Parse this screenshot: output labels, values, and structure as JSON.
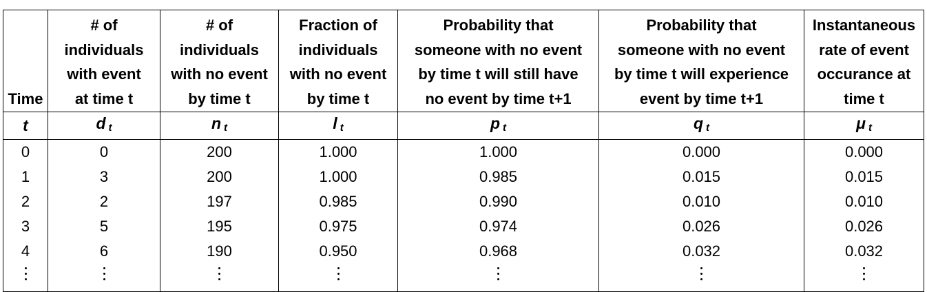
{
  "table": {
    "headers": [
      {
        "lines": [
          "Time"
        ],
        "symbol": "t",
        "sub": ""
      },
      {
        "lines": [
          "# of",
          "individuals",
          "with event",
          "at time t"
        ],
        "symbol": "d",
        "sub": "t"
      },
      {
        "lines": [
          "# of",
          "individuals",
          "with no event",
          "by time t"
        ],
        "symbol": "n",
        "sub": "t"
      },
      {
        "lines": [
          "Fraction of",
          "individuals",
          "with no event",
          "by time t"
        ],
        "symbol": "l",
        "sub": "t"
      },
      {
        "lines": [
          "Probability that",
          "someone with no event",
          "by time t will still have",
          "no event by time t+1"
        ],
        "symbol": "p",
        "sub": "t"
      },
      {
        "lines": [
          "Probability that",
          "someone with no event",
          "by time t will experience",
          "event by time t+1"
        ],
        "symbol": "q",
        "sub": "t"
      },
      {
        "lines": [
          "Instantaneous",
          "rate of event",
          "occurance at",
          "time t"
        ],
        "symbol": "μ",
        "sub": "t"
      }
    ],
    "rows": [
      [
        "0",
        "0",
        "200",
        "1.000",
        "1.000",
        "0.000",
        "0.000"
      ],
      [
        "1",
        "3",
        "200",
        "1.000",
        "0.985",
        "0.015",
        "0.015"
      ],
      [
        "2",
        "2",
        "197",
        "0.985",
        "0.990",
        "0.010",
        "0.010"
      ],
      [
        "3",
        "5",
        "195",
        "0.975",
        "0.974",
        "0.026",
        "0.026"
      ],
      [
        "4",
        "6",
        "190",
        "0.950",
        "0.968",
        "0.032",
        "0.032"
      ]
    ],
    "continuation": "⋮"
  }
}
